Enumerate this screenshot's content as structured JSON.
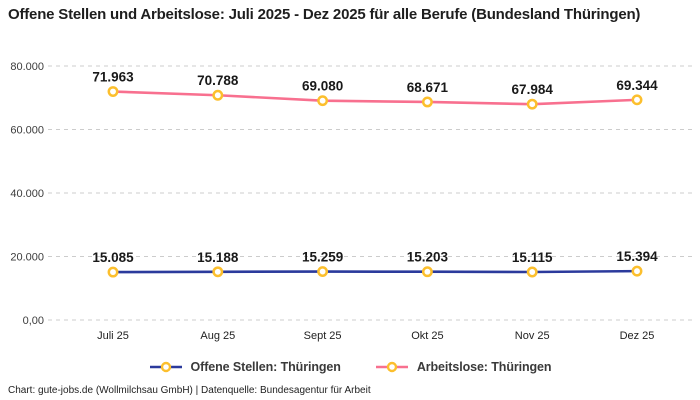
{
  "header": {
    "title": "Offene Stellen und Arbeitslose: Juli 2025 - Dez 2025 für alle Berufe (Bundesland Thüringen)"
  },
  "chart_data": {
    "type": "line",
    "title": "Offene Stellen und Arbeitslose: Juli 2025 - Dez 2025 für alle Berufe (Bundesland Thüringen)",
    "categories": [
      "Juli 25",
      "Aug 25",
      "Sept 25",
      "Okt 25",
      "Nov 25",
      "Dez 25"
    ],
    "series": [
      {
        "name": "Offene Stellen: Thüringen",
        "color": "#2b3a9c",
        "values": [
          15085,
          15188,
          15259,
          15203,
          15115,
          15394
        ],
        "labels": [
          "15.085",
          "15.188",
          "15.259",
          "15.203",
          "15.115",
          "15.394"
        ]
      },
      {
        "name": "Arbeitslose: Thüringen",
        "color": "#f8708f",
        "values": [
          71963,
          70788,
          69080,
          68671,
          67984,
          69344
        ],
        "labels": [
          "71.963",
          "70.788",
          "69.080",
          "68.671",
          "67.984",
          "69.344"
        ]
      }
    ],
    "y_ticks": {
      "values": [
        0,
        20000,
        40000,
        60000,
        80000
      ],
      "labels": [
        "0,00",
        "20.000",
        "40.000",
        "60.000",
        "80.000"
      ]
    },
    "ylim": [
      0,
      80000
    ],
    "xlabel": "",
    "ylabel": "",
    "grid": "horizontal-dashed",
    "legend_position": "bottom",
    "marker": {
      "fill": "#ffffff",
      "ring": "#fcbf2d"
    },
    "colors": {
      "grid_line": "#cccccc",
      "axis_label": "#3c3c3c",
      "data_label": "#191919"
    }
  },
  "footer": {
    "text": "Chart: gute-jobs.de (Wollmilchsau GmbH) | Datenquelle: Bundesagentur für Arbeit"
  }
}
